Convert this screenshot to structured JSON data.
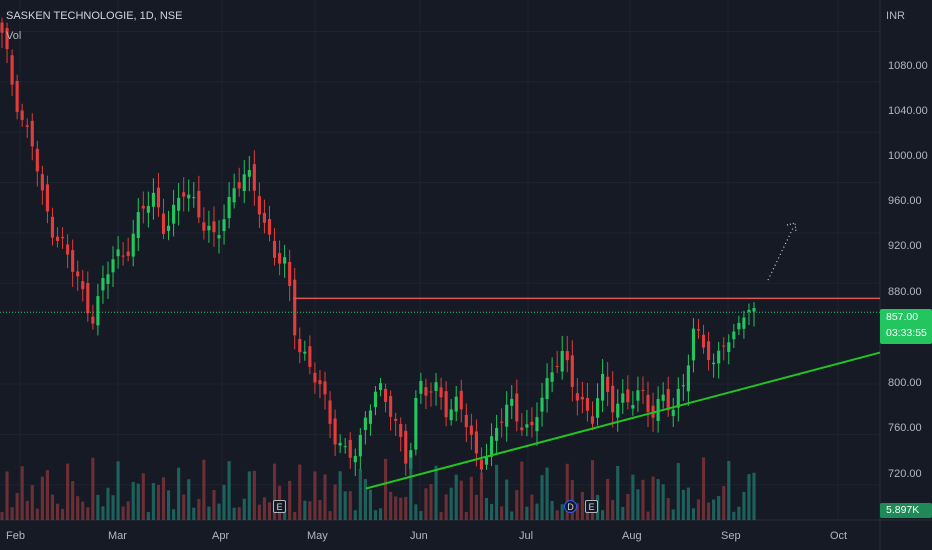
{
  "header": {
    "title": "SASKEN TECHNOLOGIE, 1D, NSE",
    "vol_label": "Vol",
    "currency": "INR"
  },
  "colors": {
    "background": "#161a25",
    "up": "#22c55e",
    "down": "#e23c3c",
    "vol_up": "#1f6f66",
    "vol_down": "#7a3438",
    "resistance": "#e05454",
    "trendline": "#22c422",
    "grid": "#1f2330"
  },
  "price_tag": {
    "price": "857.00",
    "countdown": "03:33:55"
  },
  "volume_tag": "5.897K",
  "markers": [
    {
      "label": "E",
      "type": "earnings"
    },
    {
      "label": "D",
      "type": "dividend"
    },
    {
      "label": "E",
      "type": "earnings"
    }
  ],
  "chart_data": {
    "type": "candlestick",
    "title": "SASKEN TECHNOLOGIE, 1D, NSE",
    "ylabel": "INR",
    "ylim": [
      692,
      1105
    ],
    "y_ticks": [
      "1080.00",
      "1040.00",
      "1000.00",
      "960.00",
      "920.00",
      "880.00",
      "800.00",
      "760.00",
      "720.00"
    ],
    "x_ticks": [
      "Feb",
      "Mar",
      "Apr",
      "May",
      "Jun",
      "Jul",
      "Aug",
      "Sep",
      "Oct"
    ],
    "grid": true,
    "last_price": 857,
    "last_volume": "5.897K",
    "resistance_level": 868,
    "close_series": [
      1075,
      1040,
      1010,
      990,
      945,
      925,
      910,
      890,
      870,
      855,
      880,
      900,
      905,
      920,
      940,
      950,
      925,
      935,
      955,
      945,
      925,
      910,
      940,
      960,
      965,
      950,
      925,
      900,
      890,
      835,
      820,
      800,
      780,
      755,
      745,
      740,
      785,
      800,
      780,
      760,
      740,
      800,
      790,
      800,
      775,
      785,
      760,
      740,
      745,
      770,
      790,
      770,
      755,
      790,
      810,
      825,
      800,
      790,
      770,
      800,
      785,
      790,
      785,
      790,
      780,
      790,
      775,
      800,
      845,
      830,
      810,
      840,
      835,
      855,
      857
    ],
    "trendline_values": [
      717,
      825
    ]
  }
}
